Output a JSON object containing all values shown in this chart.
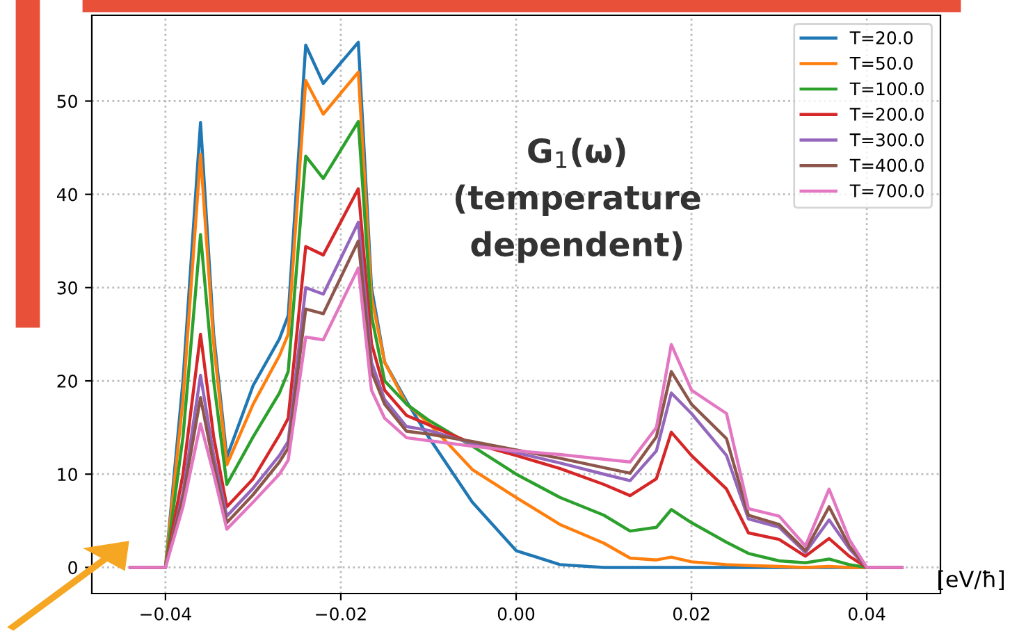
{
  "chart_data": {
    "type": "line",
    "x": [
      -0.044,
      -0.04,
      -0.038,
      -0.036,
      -0.0345,
      -0.033,
      -0.03,
      -0.027,
      -0.026,
      -0.024,
      -0.022,
      -0.018,
      -0.0165,
      -0.015,
      -0.0125,
      -0.01,
      -0.005,
      0.0,
      0.005,
      0.01,
      0.013,
      0.016,
      0.0177,
      0.02,
      0.024,
      0.0265,
      0.03,
      0.033,
      0.0357,
      0.038,
      0.04,
      0.044
    ],
    "series": [
      {
        "name": "T=20.0",
        "color": "#1f77b4",
        "values": [
          0,
          0,
          20,
          47.7,
          25,
          11.8,
          19.5,
          24.5,
          27,
          56.0,
          51.9,
          56.3,
          30,
          22,
          17.8,
          14,
          7,
          1.8,
          0.3,
          0,
          0,
          0,
          0,
          0,
          0,
          0,
          0,
          0,
          0,
          0,
          0,
          0
        ]
      },
      {
        "name": "T=50.0",
        "color": "#ff7f0e",
        "values": [
          0,
          0,
          18,
          44.3,
          24,
          11.0,
          17.5,
          22.7,
          25,
          52.2,
          48.6,
          53.1,
          29,
          22,
          17.5,
          15.5,
          10.5,
          7.5,
          4.6,
          2.6,
          1.0,
          0.8,
          1.1,
          0.6,
          0.3,
          0.2,
          0.1,
          0,
          0.1,
          0,
          0,
          0
        ]
      },
      {
        "name": "T=100.0",
        "color": "#2ca02c",
        "values": [
          0,
          0,
          14,
          35.7,
          20,
          8.9,
          14,
          18.7,
          21,
          44.1,
          41.7,
          47.8,
          27,
          20,
          17.5,
          15.8,
          13,
          10.0,
          7.5,
          5.6,
          3.9,
          4.3,
          6.2,
          4.8,
          2.7,
          1.5,
          0.7,
          0.5,
          0.9,
          0.3,
          0,
          0
        ]
      },
      {
        "name": "T=200.0",
        "color": "#d62728",
        "values": [
          0,
          0,
          10,
          25.0,
          14,
          6.5,
          9.5,
          14.2,
          16,
          34.4,
          33.5,
          40.6,
          24,
          19,
          16.3,
          15.3,
          13.3,
          12.0,
          10.6,
          8.9,
          7.7,
          9.5,
          14.5,
          12,
          8.4,
          3.7,
          3.0,
          1.2,
          3.1,
          1.2,
          0,
          0
        ]
      },
      {
        "name": "T=300.0",
        "color": "#9467bd",
        "values": [
          0,
          0,
          8,
          20.6,
          12,
          5.5,
          8.5,
          12.0,
          13.5,
          30.0,
          29.3,
          37.0,
          22,
          18,
          15.1,
          14.7,
          13.3,
          12.3,
          11.2,
          10.0,
          9.3,
          12.5,
          18.7,
          16.5,
          12.0,
          5.2,
          4.3,
          1.6,
          5.1,
          2.0,
          0,
          0
        ]
      },
      {
        "name": "T=400.0",
        "color": "#8c564b",
        "values": [
          0,
          0,
          7.5,
          18.2,
          11,
          4.8,
          7.8,
          11.3,
          12.8,
          27.7,
          27.2,
          35.0,
          21,
          17.5,
          14.6,
          14.3,
          13.5,
          12.6,
          11.7,
          10.7,
          10.1,
          14,
          21.0,
          17.5,
          13.8,
          5.6,
          4.6,
          1.8,
          6.5,
          2.3,
          0,
          0
        ]
      },
      {
        "name": "T=700.0",
        "color": "#e377c2",
        "values": [
          0,
          0,
          6.5,
          15.4,
          10,
          4.1,
          7,
          10.0,
          11.5,
          24.7,
          24.4,
          32.1,
          19,
          16,
          13.9,
          13.6,
          13.0,
          12.5,
          12.1,
          11.6,
          11.3,
          15,
          23.9,
          19,
          16.5,
          6.3,
          5.5,
          2.3,
          8.4,
          3.0,
          0,
          0
        ]
      }
    ],
    "xlabel": "[eV/ħ]",
    "annotations": [
      "G$_{1}$(ω)\n(temperature\ndependent)"
    ],
    "xlim": [
      -0.0484,
      0.0484
    ],
    "xticks": [
      {
        "value": -0.04,
        "label": "−0.04"
      },
      {
        "value": -0.02,
        "label": "−0.02"
      },
      {
        "value": 0.0,
        "label": "0.00"
      },
      {
        "value": 0.02,
        "label": "0.02"
      },
      {
        "value": 0.04,
        "label": "0.04"
      }
    ],
    "ylim": [
      -2.8,
      59.2
    ],
    "yticks": [
      0,
      10,
      20,
      30,
      40,
      50
    ],
    "grid": true,
    "legend": "top right",
    "marker": "none",
    "line_style": "solid"
  }
}
